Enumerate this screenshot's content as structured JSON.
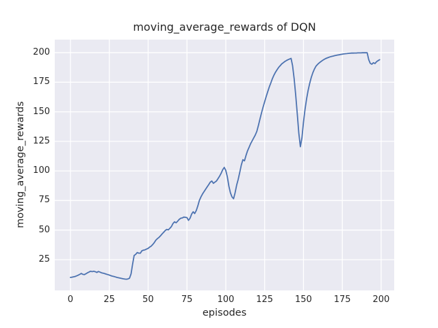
{
  "figure": {
    "title": "moving_average_rewards of DQN"
  },
  "chart_data": {
    "type": "line",
    "title": "moving_average_rewards of DQN",
    "xlabel": "episodes",
    "ylabel": "moving_average_rewards",
    "x_ticks": [
      0,
      25,
      50,
      75,
      100,
      125,
      150,
      175,
      200
    ],
    "y_ticks": [
      25,
      50,
      75,
      100,
      125,
      150,
      175,
      200
    ],
    "xlim": [
      -10.1,
      208.4
    ],
    "ylim": [
      -1,
      211
    ],
    "grid": true,
    "legend_position": "none",
    "line_color": "#4C72B0",
    "axes_background": "#EAEAF2",
    "grid_color": "#FFFFFF",
    "text_color": "#262626",
    "series": [
      {
        "name": "DQN moving average rewards",
        "points": [
          [
            0,
            10.0
          ],
          [
            1,
            10.2
          ],
          [
            2,
            10.5
          ],
          [
            3,
            10.8
          ],
          [
            4,
            11.3
          ],
          [
            5,
            11.9
          ],
          [
            6,
            12.6
          ],
          [
            7,
            13.3
          ],
          [
            8,
            12.6
          ],
          [
            9,
            12.4
          ],
          [
            10,
            13.1
          ],
          [
            11,
            13.9
          ],
          [
            12,
            14.6
          ],
          [
            13,
            15.2
          ],
          [
            14,
            14.9
          ],
          [
            15,
            15.2
          ],
          [
            16,
            14.8
          ],
          [
            17,
            14.2
          ],
          [
            18,
            15.0
          ],
          [
            19,
            14.5
          ],
          [
            20,
            13.9
          ],
          [
            21,
            13.6
          ],
          [
            22,
            13.2
          ],
          [
            23,
            12.8
          ],
          [
            24,
            12.4
          ],
          [
            25,
            12.0
          ],
          [
            26,
            11.5
          ],
          [
            27,
            11.1
          ],
          [
            28,
            10.8
          ],
          [
            29,
            10.4
          ],
          [
            30,
            10.0
          ],
          [
            31,
            9.7
          ],
          [
            32,
            9.4
          ],
          [
            33,
            9.1
          ],
          [
            34,
            8.8
          ],
          [
            35,
            8.6
          ],
          [
            36,
            8.5
          ],
          [
            37,
            8.7
          ],
          [
            38,
            9.3
          ],
          [
            39,
            13.0
          ],
          [
            40,
            21.0
          ],
          [
            41,
            28.5
          ],
          [
            42,
            29.5
          ],
          [
            43,
            31.0
          ],
          [
            44,
            30.5
          ],
          [
            45,
            30.5
          ],
          [
            46,
            32.5
          ],
          [
            47,
            33.0
          ],
          [
            48,
            33.3
          ],
          [
            49,
            34.0
          ],
          [
            50,
            34.5
          ],
          [
            51,
            35.6
          ],
          [
            52,
            36.5
          ],
          [
            53,
            37.8
          ],
          [
            54,
            39.5
          ],
          [
            55,
            41.5
          ],
          [
            56,
            42.8
          ],
          [
            57,
            43.8
          ],
          [
            58,
            45.2
          ],
          [
            59,
            46.8
          ],
          [
            60,
            48.1
          ],
          [
            61,
            49.6
          ],
          [
            62,
            50.6
          ],
          [
            63,
            50.2
          ],
          [
            64,
            51.5
          ],
          [
            65,
            53.0
          ],
          [
            66,
            55.5
          ],
          [
            67,
            57.0
          ],
          [
            68,
            56.2
          ],
          [
            69,
            57.5
          ],
          [
            70,
            59.0
          ],
          [
            71,
            60.0
          ],
          [
            72,
            60.3
          ],
          [
            73,
            61.0
          ],
          [
            74,
            60.8
          ],
          [
            75,
            60.5
          ],
          [
            76,
            58.2
          ],
          [
            77,
            60.0
          ],
          [
            78,
            63.5
          ],
          [
            79,
            65.5
          ],
          [
            80,
            64.0
          ],
          [
            81,
            66.5
          ],
          [
            82,
            70.5
          ],
          [
            83,
            75.0
          ],
          [
            84,
            78.0
          ],
          [
            85,
            80.5
          ],
          [
            86,
            82.5
          ],
          [
            87,
            84.5
          ],
          [
            88,
            86.5
          ],
          [
            89,
            88.5
          ],
          [
            90,
            90.5
          ],
          [
            91,
            91.5
          ],
          [
            92,
            89.5
          ],
          [
            93,
            90.5
          ],
          [
            94,
            91.5
          ],
          [
            95,
            93.5
          ],
          [
            96,
            95.5
          ],
          [
            97,
            98.0
          ],
          [
            98,
            101.0
          ],
          [
            99,
            103.0
          ],
          [
            100,
            100.5
          ],
          [
            101,
            95.0
          ],
          [
            102,
            87.0
          ],
          [
            103,
            81.5
          ],
          [
            104,
            78.0
          ],
          [
            105,
            76.5
          ],
          [
            106,
            81.5
          ],
          [
            107,
            88.0
          ],
          [
            108,
            93.0
          ],
          [
            109,
            99.0
          ],
          [
            110,
            105.0
          ],
          [
            111,
            109.5
          ],
          [
            112,
            108.5
          ],
          [
            113,
            113.0
          ],
          [
            114,
            117.0
          ],
          [
            115,
            120.0
          ],
          [
            116,
            123.0
          ],
          [
            117,
            125.5
          ],
          [
            118,
            128.0
          ],
          [
            119,
            130.5
          ],
          [
            120,
            133.5
          ],
          [
            121,
            138.5
          ],
          [
            122,
            144.0
          ],
          [
            123,
            149.0
          ],
          [
            124,
            154.0
          ],
          [
            125,
            158.5
          ],
          [
            126,
            163.0
          ],
          [
            127,
            167.0
          ],
          [
            128,
            171.0
          ],
          [
            129,
            174.5
          ],
          [
            130,
            178.0
          ],
          [
            131,
            181.0
          ],
          [
            132,
            183.5
          ],
          [
            133,
            185.5
          ],
          [
            134,
            187.5
          ],
          [
            135,
            189.0
          ],
          [
            136,
            190.5
          ],
          [
            137,
            191.5
          ],
          [
            138,
            192.5
          ],
          [
            139,
            193.3
          ],
          [
            140,
            194.0
          ],
          [
            141,
            194.6
          ],
          [
            142,
            195.2
          ],
          [
            143,
            189.0
          ],
          [
            144,
            178.0
          ],
          [
            145,
            164.0
          ],
          [
            146,
            148.0
          ],
          [
            147,
            132.0
          ],
          [
            148,
            120.5
          ],
          [
            149,
            128.0
          ],
          [
            150,
            141.0
          ],
          [
            151,
            152.0
          ],
          [
            152,
            161.0
          ],
          [
            153,
            168.0
          ],
          [
            154,
            174.0
          ],
          [
            155,
            179.0
          ],
          [
            156,
            183.0
          ],
          [
            157,
            186.0
          ],
          [
            158,
            188.5
          ],
          [
            159,
            190.0
          ],
          [
            160,
            191.2
          ],
          [
            161,
            192.2
          ],
          [
            162,
            193.2
          ],
          [
            163,
            194.0
          ],
          [
            164,
            194.8
          ],
          [
            165,
            195.4
          ],
          [
            166,
            195.9
          ],
          [
            167,
            196.4
          ],
          [
            168,
            196.8
          ],
          [
            169,
            197.1
          ],
          [
            170,
            197.4
          ],
          [
            171,
            197.7
          ],
          [
            172,
            198.0
          ],
          [
            173,
            198.2
          ],
          [
            174,
            198.5
          ],
          [
            175,
            198.7
          ],
          [
            176,
            198.9
          ],
          [
            177,
            199.1
          ],
          [
            178,
            199.2
          ],
          [
            179,
            199.4
          ],
          [
            180,
            199.5
          ],
          [
            181,
            199.6
          ],
          [
            182,
            199.6
          ],
          [
            183,
            199.7
          ],
          [
            184,
            199.7
          ],
          [
            185,
            199.8
          ],
          [
            186,
            199.8
          ],
          [
            187,
            199.8
          ],
          [
            188,
            199.9
          ],
          [
            189,
            199.9
          ],
          [
            190,
            199.9
          ],
          [
            191,
            199.9
          ],
          [
            192,
            194.0
          ],
          [
            193,
            191.0
          ],
          [
            194,
            190.2
          ],
          [
            195,
            191.5
          ],
          [
            196,
            190.8
          ],
          [
            197,
            192.3
          ],
          [
            198,
            193.2
          ],
          [
            199,
            194.0
          ]
        ]
      }
    ]
  }
}
